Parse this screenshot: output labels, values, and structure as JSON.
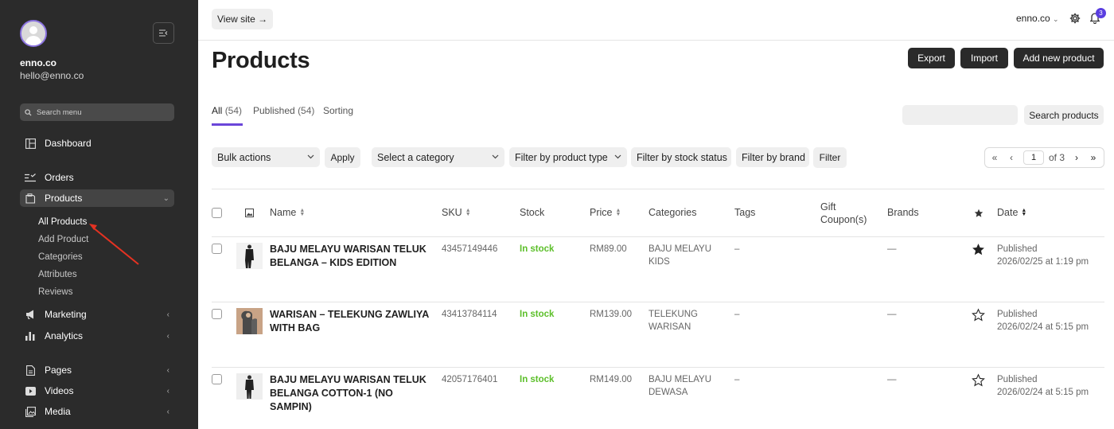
{
  "sidebar": {
    "user_name": "enno.co",
    "user_email": "hello@enno.co",
    "search_placeholder": "Search menu",
    "items": {
      "dashboard": "Dashboard",
      "orders": "Orders",
      "products": "Products",
      "marketing": "Marketing",
      "analytics": "Analytics",
      "pages": "Pages",
      "videos": "Videos",
      "media": "Media"
    },
    "products_sub": [
      "All Products",
      "Add Product",
      "Categories",
      "Attributes",
      "Reviews"
    ]
  },
  "topbar": {
    "view_site": "View site →",
    "store": "enno.co",
    "notifications_count": "3"
  },
  "page": {
    "title": "Products",
    "export": "Export",
    "import": "Import",
    "add_new": "Add new product"
  },
  "tabs": {
    "all": "All",
    "all_count": "(54)",
    "published": "Published",
    "published_count": "(54)",
    "sorting": "Sorting"
  },
  "search": {
    "button": "Search products",
    "value": ""
  },
  "filters": {
    "bulk": "Bulk actions",
    "apply": "Apply",
    "category": "Select a category",
    "product_type": "Filter by product type",
    "stock_status": "Filter by stock status",
    "brand": "Filter by brand",
    "filter_btn": "Filter"
  },
  "pagination": {
    "current": "1",
    "of": "of 3"
  },
  "columns": {
    "name": "Name",
    "sku": "SKU",
    "stock": "Stock",
    "price": "Price",
    "categories": "Categories",
    "tags": "Tags",
    "gift_1": "Gift",
    "gift_2": "Coupon(s)",
    "brands": "Brands",
    "date": "Date"
  },
  "products": [
    {
      "name_1": "BAJU MELAYU WARISAN TELUK",
      "name_2": "BELANGA – KIDS EDITION",
      "sku": "43457149446",
      "stock": "In stock",
      "price": "RM89.00",
      "cat_1": "BAJU MELAYU",
      "cat_2": "KIDS",
      "tags": "–",
      "brands": "—",
      "featured": true,
      "status": "Published",
      "date": "2026/02/25 at 1:19 pm"
    },
    {
      "name_1": "WARISAN – TELEKUNG ZAWLIYA",
      "name_2": "WITH BAG",
      "sku": "43413784114",
      "stock": "In stock",
      "price": "RM139.00",
      "cat_1": "TELEKUNG",
      "cat_2": "WARISAN",
      "tags": "–",
      "brands": "—",
      "featured": false,
      "status": "Published",
      "date": "2026/02/24 at 5:15 pm"
    },
    {
      "name_1": "BAJU MELAYU WARISAN TELUK",
      "name_2": "BELANGA COTTON-1 (NO SAMPIN)",
      "sku": "42057176401",
      "stock": "In stock",
      "price": "RM149.00",
      "cat_1": "BAJU MELAYU",
      "cat_2": "DEWASA",
      "tags": "–",
      "brands": "—",
      "featured": false,
      "status": "Published",
      "date": "2026/02/24 at 5:15 pm"
    }
  ],
  "colors": {
    "accent": "#6b46d9",
    "in_stock": "#5cbf2a",
    "sidebar_bg": "#2b2b2b",
    "annotation_arrow": "#e53222"
  }
}
